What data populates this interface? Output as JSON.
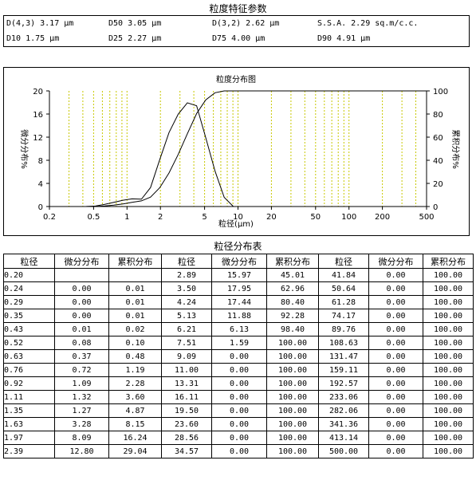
{
  "params_title": "粒度特征参数",
  "params": {
    "row1": [
      "D(4,3) 3.17 μm",
      "D50 3.05 μm",
      "D(3,2) 2.62 μm",
      "S.S.A. 2.29 sq.m/c.c."
    ],
    "row2": [
      "D10    1.75 μm",
      "D25 2.27 μm",
      "D75    4.00 μm",
      "D90    4.91 μm"
    ]
  },
  "chart_data": {
    "type": "line",
    "title": "粒度分布图",
    "xlabel": "粒径(μm)",
    "ylabel_left": "微分分布%",
    "ylabel_right": "累积分布%",
    "x_scale": "log",
    "xlim": [
      0.2,
      500
    ],
    "ylim_left": [
      0,
      20
    ],
    "ylim_right": [
      0,
      100
    ],
    "x_ticks": [
      "0.2",
      "0.5",
      "1",
      "2",
      "5",
      "10",
      "20",
      "50",
      "100",
      "200",
      "500"
    ],
    "y_ticks_left": [
      "0",
      "4",
      "8",
      "12",
      "16",
      "20"
    ],
    "y_ticks_right": [
      "0",
      "20",
      "40",
      "60",
      "80",
      "100"
    ],
    "grid": "vertical dashed",
    "series": [
      {
        "axis": "left",
        "x": [
          0.2,
          0.24,
          0.29,
          0.35,
          0.43,
          0.52,
          0.63,
          0.76,
          0.92,
          1.11,
          1.35,
          1.63,
          1.97,
          2.39,
          2.89,
          3.5,
          4.24,
          5.13,
          6.21,
          7.51,
          9.09
        ],
        "y": [
          0,
          0,
          0,
          0,
          0.01,
          0.08,
          0.37,
          0.72,
          1.09,
          1.32,
          1.27,
          3.28,
          8.09,
          12.8,
          15.97,
          17.95,
          17.44,
          11.88,
          6.13,
          1.59,
          0
        ]
      },
      {
        "axis": "right",
        "x": [
          0.2,
          0.24,
          0.29,
          0.35,
          0.43,
          0.52,
          0.63,
          0.76,
          0.92,
          1.11,
          1.35,
          1.63,
          1.97,
          2.39,
          2.89,
          3.5,
          4.24,
          5.13,
          6.21,
          7.51,
          9.09,
          11.0,
          500
        ],
        "y": [
          0,
          0.01,
          0.01,
          0.01,
          0.02,
          0.1,
          0.48,
          1.19,
          2.28,
          3.6,
          4.87,
          8.15,
          16.24,
          29.04,
          45.01,
          62.96,
          80.4,
          92.28,
          98.4,
          100,
          100,
          100,
          100
        ]
      }
    ]
  },
  "table_title": "粒径分布表",
  "table": {
    "headers": [
      "粒径",
      "微分分布",
      "累积分布",
      "粒径",
      "微分分布",
      "累积分布",
      "粒径",
      "微分分布",
      "累积分布"
    ],
    "rows": [
      [
        "0.20",
        "",
        "",
        "2.89",
        "15.97",
        "45.01",
        "41.84",
        "0.00",
        "100.00"
      ],
      [
        "0.24",
        "0.00",
        "0.01",
        "3.50",
        "17.95",
        "62.96",
        "50.64",
        "0.00",
        "100.00"
      ],
      [
        "0.29",
        "0.00",
        "0.01",
        "4.24",
        "17.44",
        "80.40",
        "61.28",
        "0.00",
        "100.00"
      ],
      [
        "0.35",
        "0.00",
        "0.01",
        "5.13",
        "11.88",
        "92.28",
        "74.17",
        "0.00",
        "100.00"
      ],
      [
        "0.43",
        "0.01",
        "0.02",
        "6.21",
        "6.13",
        "98.40",
        "89.76",
        "0.00",
        "100.00"
      ],
      [
        "0.52",
        "0.08",
        "0.10",
        "7.51",
        "1.59",
        "100.00",
        "108.63",
        "0.00",
        "100.00"
      ],
      [
        "0.63",
        "0.37",
        "0.48",
        "9.09",
        "0.00",
        "100.00",
        "131.47",
        "0.00",
        "100.00"
      ],
      [
        "0.76",
        "0.72",
        "1.19",
        "11.00",
        "0.00",
        "100.00",
        "159.11",
        "0.00",
        "100.00"
      ],
      [
        "0.92",
        "1.09",
        "2.28",
        "13.31",
        "0.00",
        "100.00",
        "192.57",
        "0.00",
        "100.00"
      ],
      [
        "1.11",
        "1.32",
        "3.60",
        "16.11",
        "0.00",
        "100.00",
        "233.06",
        "0.00",
        "100.00"
      ],
      [
        "1.35",
        "1.27",
        "4.87",
        "19.50",
        "0.00",
        "100.00",
        "282.06",
        "0.00",
        "100.00"
      ],
      [
        "1.63",
        "3.28",
        "8.15",
        "23.60",
        "0.00",
        "100.00",
        "341.36",
        "0.00",
        "100.00"
      ],
      [
        "1.97",
        "8.09",
        "16.24",
        "28.56",
        "0.00",
        "100.00",
        "413.14",
        "0.00",
        "100.00"
      ],
      [
        "2.39",
        "12.80",
        "29.04",
        "34.57",
        "0.00",
        "100.00",
        "500.00",
        "0.00",
        "100.00"
      ]
    ]
  }
}
